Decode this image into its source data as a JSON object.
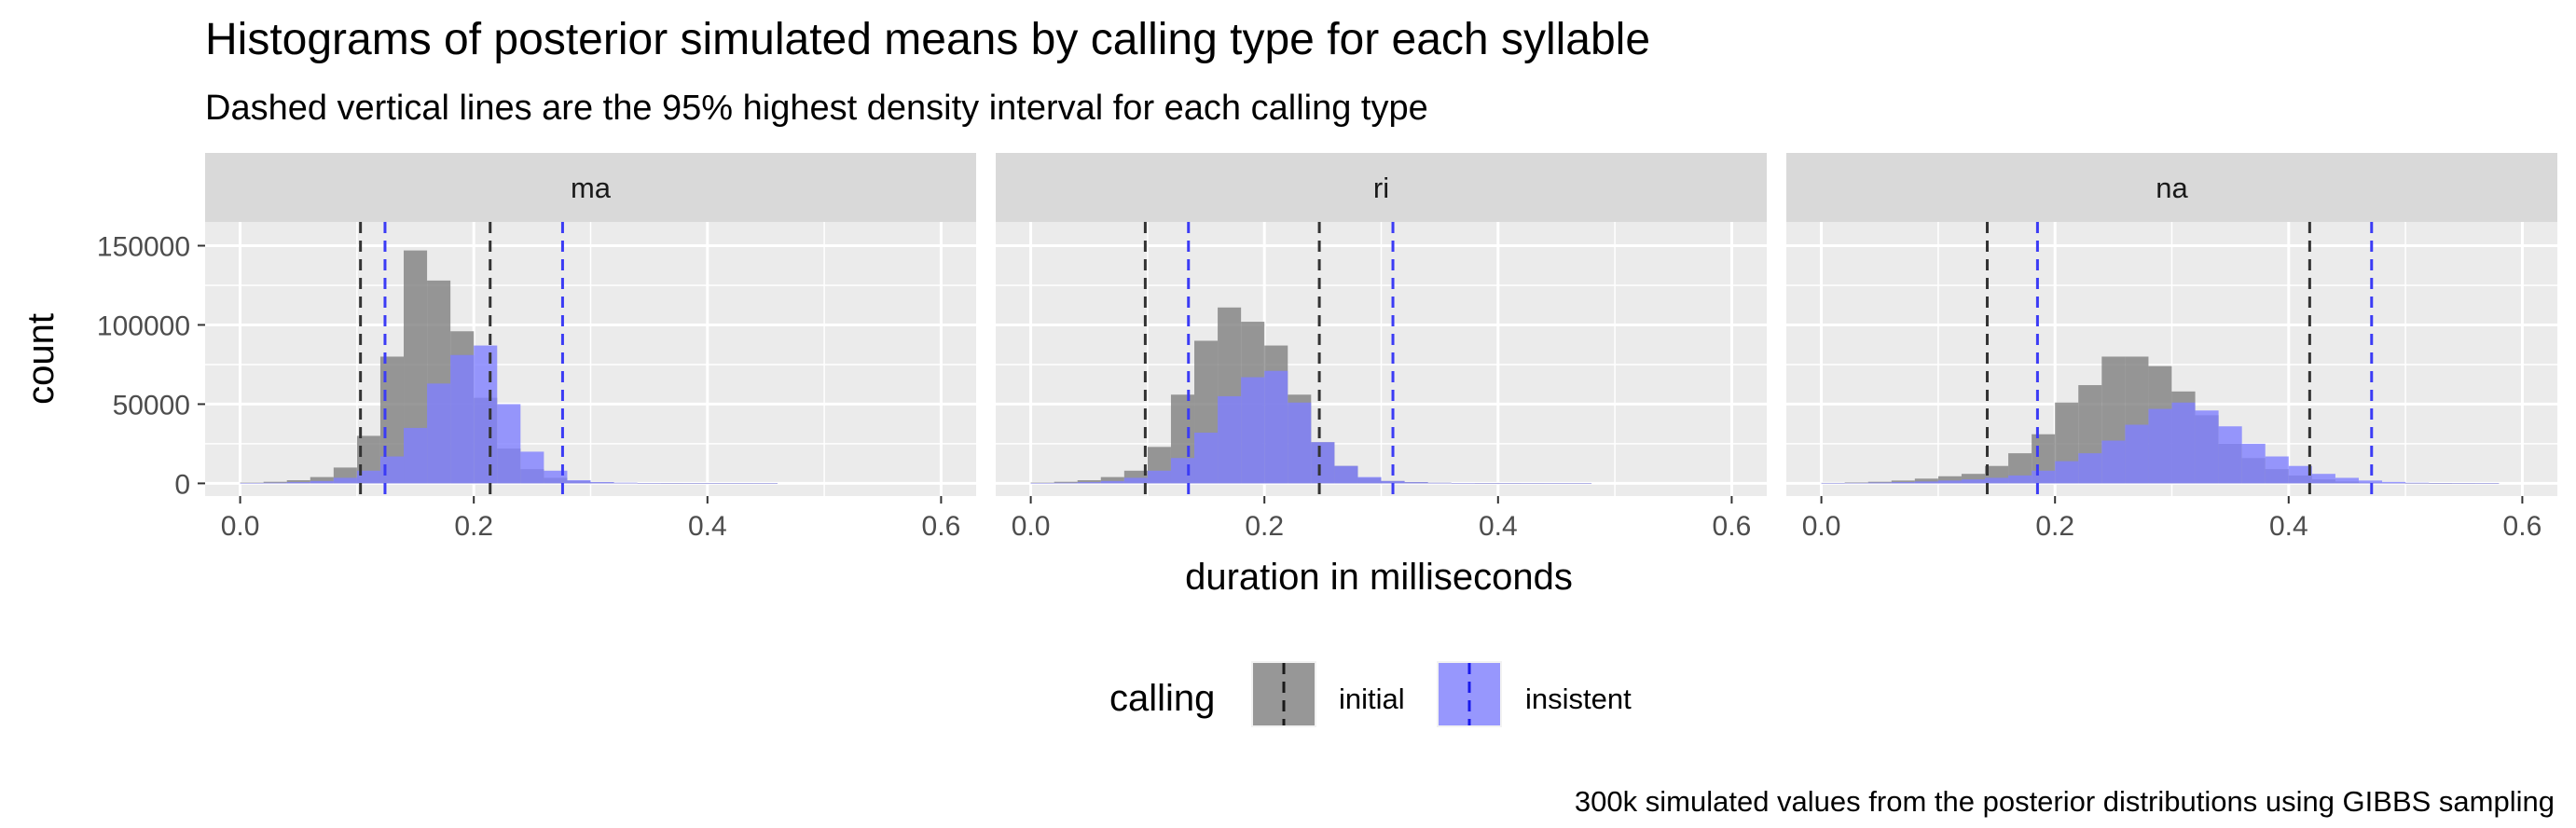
{
  "title": "Histograms of posterior simulated means by calling type for each syllable",
  "subtitle": "Dashed vertical lines are the 95% highest density interval for each calling type",
  "caption": "300k simulated values from the posterior distributions using GIBBS sampling",
  "colors": {
    "panel_bg": "#EBEBEB",
    "strip_bg": "#D9D9D9",
    "grid": "#FFFFFF",
    "initial_fill": "#7F7F7F",
    "insistent_fill": "#7F7FFF",
    "initial_line": "#333333",
    "insistent_line": "#3B3BF5"
  },
  "chart_data": {
    "type": "histogram",
    "xlabel": "duration in milliseconds",
    "ylabel": "count",
    "xlim": [
      -0.03,
      0.63
    ],
    "ylim": [
      -8000,
      165000
    ],
    "xticks": [
      0.0,
      0.2,
      0.4,
      0.6
    ],
    "xtick_labels": [
      "0.0",
      "0.2",
      "0.4",
      "0.6"
    ],
    "yticks": [
      0,
      50000,
      100000,
      150000
    ],
    "ytick_labels": [
      "0",
      "50000",
      "100000",
      "150000"
    ],
    "bin_width": 0.02,
    "grid": true,
    "legend": {
      "title": "calling",
      "position": "bottom",
      "entries": [
        {
          "key": "initial",
          "label": "initial"
        },
        {
          "key": "insistent",
          "label": "insistent"
        }
      ]
    },
    "panels": [
      {
        "label": "ma",
        "series": [
          {
            "key": "initial",
            "bins_start": 0.0,
            "values": [
              500,
              1000,
              2000,
              4000,
              10000,
              30000,
              80000,
              147000,
              128000,
              96000,
              54000,
              22000,
              9000,
              3500,
              1500,
              700,
              300,
              150,
              80,
              40,
              20,
              10,
              5,
              0,
              0,
              0,
              0,
              0,
              0,
              0
            ]
          },
          {
            "key": "insistent",
            "bins_start": 0.0,
            "values": [
              200,
              400,
              800,
              1500,
              3500,
              8000,
              17000,
              35000,
              63000,
              81000,
              87000,
              50000,
              20000,
              8000,
              2000,
              800,
              400,
              200,
              100,
              50,
              25,
              10,
              5,
              0,
              0,
              0,
              0,
              0,
              0,
              0
            ]
          }
        ],
        "hdi": {
          "initial": [
            0.103,
            0.214
          ],
          "insistent": [
            0.124,
            0.276
          ]
        }
      },
      {
        "label": "ri",
        "series": [
          {
            "key": "initial",
            "bins_start": 0.0,
            "values": [
              500,
              1000,
              2000,
              4000,
              8000,
              23000,
              56000,
              90000,
              111000,
              102000,
              87000,
              56000,
              26000,
              11000,
              3500,
              1500,
              800,
              400,
              200,
              100,
              50,
              25,
              10,
              5,
              0,
              0,
              0,
              0,
              0,
              0
            ]
          },
          {
            "key": "insistent",
            "bins_start": 0.0,
            "values": [
              200,
              400,
              800,
              1500,
              3500,
              8000,
              16000,
              32000,
              55000,
              67000,
              71000,
              51000,
              26000,
              11000,
              4000,
              1500,
              700,
              350,
              170,
              80,
              40,
              20,
              10,
              5,
              0,
              0,
              0,
              0,
              0,
              0
            ]
          }
        ],
        "hdi": {
          "initial": [
            0.098,
            0.247
          ],
          "insistent": [
            0.135,
            0.31
          ]
        }
      },
      {
        "label": "na",
        "series": [
          {
            "key": "initial",
            "bins_start": 0.0,
            "values": [
              300,
              600,
              1000,
              1800,
              3000,
              4500,
              6000,
              11000,
              19000,
              31000,
              51000,
              62000,
              80000,
              80000,
              74000,
              58000,
              43000,
              25000,
              16000,
              9000,
              5000,
              2500,
              1200,
              500,
              250,
              100,
              50,
              20,
              10,
              0
            ]
          },
          {
            "key": "insistent",
            "bins_start": 0.0,
            "values": [
              150,
              300,
              500,
              800,
              1200,
              1800,
              2500,
              3500,
              5000,
              8000,
              14000,
              19000,
              27000,
              37000,
              47000,
              51000,
              46000,
              36000,
              25000,
              17000,
              11000,
              6000,
              3500,
              1800,
              900,
              400,
              200,
              80,
              30,
              0
            ]
          }
        ],
        "hdi": {
          "initial": [
            0.142,
            0.418
          ],
          "insistent": [
            0.185,
            0.471
          ]
        }
      }
    ]
  }
}
